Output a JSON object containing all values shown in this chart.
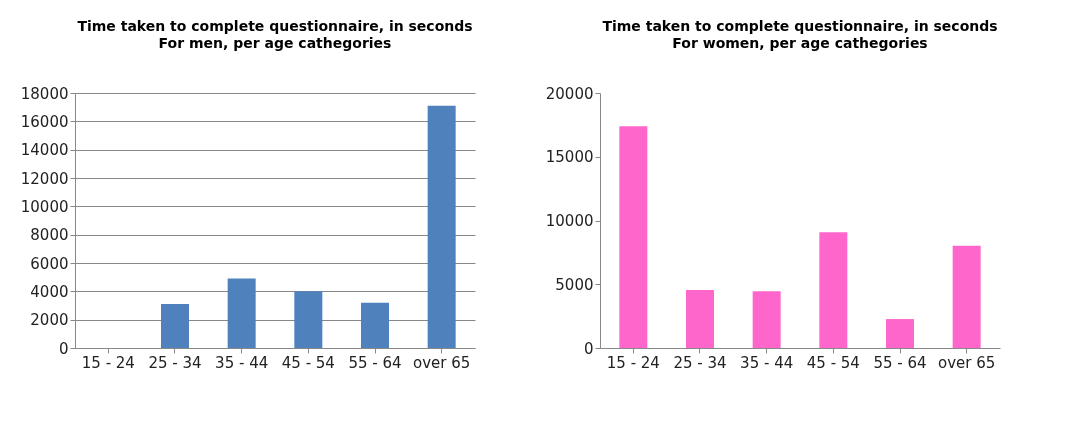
{
  "chart_data": [
    {
      "type": "bar",
      "title": "Time taken to complete questionnaire, in seconds",
      "subtitle": "For men, per age cathegories",
      "categories": [
        "15 - 24",
        "25 - 34",
        "35 - 44",
        "45 - 54",
        "55 - 64",
        "over 65"
      ],
      "values": [
        0,
        3100,
        4900,
        4000,
        3200,
        17100
      ],
      "color": "#4f81bd",
      "ylim": [
        0,
        18000
      ],
      "yticks": [
        0,
        2000,
        4000,
        6000,
        8000,
        10000,
        12000,
        14000,
        16000,
        18000
      ],
      "grid": "y"
    },
    {
      "type": "bar",
      "title": "Time taken to complete questionnaire, in seconds",
      "subtitle": "For women, per age cathegories",
      "categories": [
        "15 - 24",
        "25 - 34",
        "35 - 44",
        "45 - 54",
        "55 - 64",
        "over 65"
      ],
      "values": [
        17400,
        4550,
        4450,
        9070,
        2270,
        8020
      ],
      "color": "#ff66cc",
      "ylim": [
        0,
        20000
      ],
      "yticks": [
        0,
        5000,
        10000,
        15000,
        20000
      ]
    }
  ]
}
